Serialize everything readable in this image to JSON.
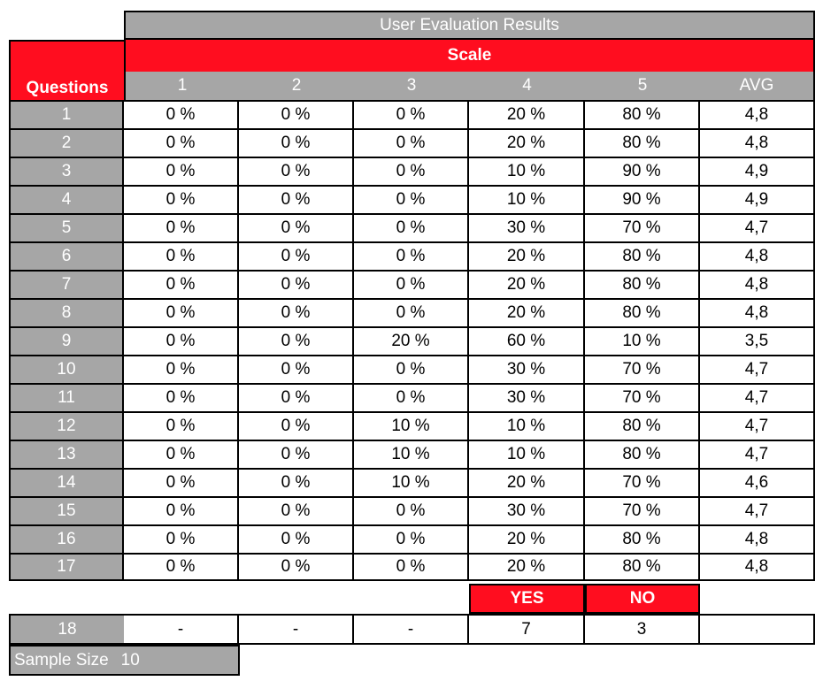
{
  "title": "User Evaluation Results",
  "scale_label": "Scale",
  "questions_label": "Questions",
  "columns": [
    "1",
    "2",
    "3",
    "4",
    "5",
    "AVG"
  ],
  "rows": [
    {
      "q": "1",
      "v": [
        "0 %",
        "0 %",
        "0 %",
        "20 %",
        "80 %",
        "4,8"
      ]
    },
    {
      "q": "2",
      "v": [
        "0 %",
        "0 %",
        "0 %",
        "20 %",
        "80 %",
        "4,8"
      ]
    },
    {
      "q": "3",
      "v": [
        "0 %",
        "0 %",
        "0 %",
        "10 %",
        "90 %",
        "4,9"
      ]
    },
    {
      "q": "4",
      "v": [
        "0 %",
        "0 %",
        "0 %",
        "10 %",
        "90 %",
        "4,9"
      ]
    },
    {
      "q": "5",
      "v": [
        "0 %",
        "0 %",
        "0 %",
        "30 %",
        "70 %",
        "4,7"
      ]
    },
    {
      "q": "6",
      "v": [
        "0 %",
        "0 %",
        "0 %",
        "20 %",
        "80 %",
        "4,8"
      ]
    },
    {
      "q": "7",
      "v": [
        "0 %",
        "0 %",
        "0 %",
        "20 %",
        "80 %",
        "4,8"
      ]
    },
    {
      "q": "8",
      "v": [
        "0 %",
        "0 %",
        "0 %",
        "20 %",
        "80 %",
        "4,8"
      ]
    },
    {
      "q": "9",
      "v": [
        "0 %",
        "0 %",
        "20 %",
        "60 %",
        "10 %",
        "3,5"
      ]
    },
    {
      "q": "10",
      "v": [
        "0 %",
        "0 %",
        "0 %",
        "30 %",
        "70 %",
        "4,7"
      ]
    },
    {
      "q": "11",
      "v": [
        "0 %",
        "0 %",
        "0 %",
        "30 %",
        "70 %",
        "4,7"
      ]
    },
    {
      "q": "12",
      "v": [
        "0 %",
        "0 %",
        "10 %",
        "10 %",
        "80 %",
        "4,7"
      ]
    },
    {
      "q": "13",
      "v": [
        "0 %",
        "0 %",
        "10 %",
        "10 %",
        "80 %",
        "4,7"
      ]
    },
    {
      "q": "14",
      "v": [
        "0 %",
        "0 %",
        "10 %",
        "20 %",
        "70 %",
        "4,6"
      ]
    },
    {
      "q": "15",
      "v": [
        "0 %",
        "0 %",
        "0 %",
        "30 %",
        "70 %",
        "4,7"
      ]
    },
    {
      "q": "16",
      "v": [
        "0 %",
        "0 %",
        "0 %",
        "20 %",
        "80 %",
        "4,8"
      ]
    },
    {
      "q": "17",
      "v": [
        "0 %",
        "0 %",
        "0 %",
        "20 %",
        "80 %",
        "4,8"
      ]
    }
  ],
  "yes_label": "YES",
  "no_label": "NO",
  "q18": {
    "q": "18",
    "v": [
      "-",
      "-",
      "-",
      "7",
      "3",
      ""
    ]
  },
  "sample_size_label": "Sample Size",
  "sample_size_value": "10"
}
